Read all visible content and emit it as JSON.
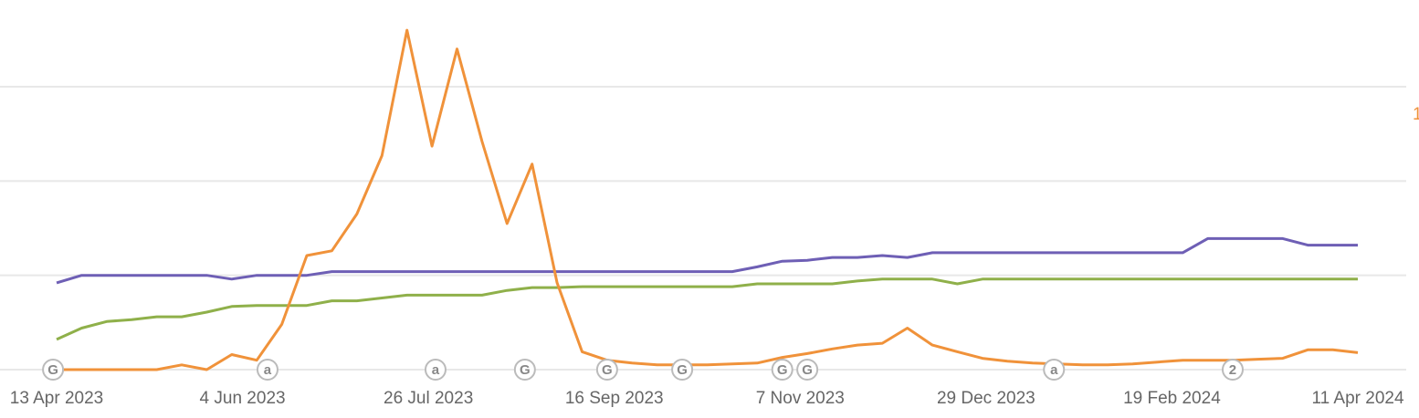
{
  "chart_data": {
    "type": "line",
    "x": [
      "2023-04-13",
      "2023-04-20",
      "2023-04-27",
      "2023-05-04",
      "2023-05-11",
      "2023-05-18",
      "2023-05-25",
      "2023-06-01",
      "2023-06-08",
      "2023-06-15",
      "2023-06-22",
      "2023-06-29",
      "2023-07-06",
      "2023-07-13",
      "2023-07-20",
      "2023-07-27",
      "2023-08-03",
      "2023-08-10",
      "2023-08-17",
      "2023-08-24",
      "2023-08-31",
      "2023-09-07",
      "2023-09-14",
      "2023-09-21",
      "2023-09-28",
      "2023-10-05",
      "2023-10-12",
      "2023-10-19",
      "2023-10-26",
      "2023-11-02",
      "2023-11-09",
      "2023-11-16",
      "2023-11-23",
      "2023-11-30",
      "2023-12-07",
      "2023-12-14",
      "2023-12-21",
      "2023-12-28",
      "2024-01-04",
      "2024-01-11",
      "2024-01-18",
      "2024-01-25",
      "2024-02-01",
      "2024-02-08",
      "2024-02-15",
      "2024-02-22",
      "2024-02-29",
      "2024-03-07",
      "2024-03-14",
      "2024-03-21",
      "2024-03-28",
      "2024-04-04",
      "2024-04-11"
    ],
    "series": [
      {
        "color": "#6e5fb5",
        "values": [
          0.92,
          1.0,
          1.0,
          1.0,
          1.0,
          1.0,
          1.0,
          0.96,
          1.0,
          1.0,
          1.0,
          1.04,
          1.04,
          1.04,
          1.04,
          1.04,
          1.04,
          1.04,
          1.04,
          1.04,
          1.04,
          1.04,
          1.04,
          1.04,
          1.04,
          1.04,
          1.04,
          1.04,
          1.09,
          1.15,
          1.16,
          1.19,
          1.19,
          1.21,
          1.19,
          1.24,
          1.24,
          1.24,
          1.24,
          1.24,
          1.24,
          1.24,
          1.24,
          1.24,
          1.24,
          1.24,
          1.39,
          1.39,
          1.39,
          1.39,
          1.32,
          1.32,
          1.32
        ]
      },
      {
        "color": "#8fb04a",
        "values": [
          0.32,
          0.44,
          0.51,
          0.53,
          0.56,
          0.56,
          0.61,
          0.67,
          0.68,
          0.68,
          0.68,
          0.73,
          0.73,
          0.76,
          0.79,
          0.79,
          0.79,
          0.79,
          0.84,
          0.87,
          0.87,
          0.88,
          0.88,
          0.88,
          0.88,
          0.88,
          0.88,
          0.88,
          0.91,
          0.91,
          0.91,
          0.91,
          0.94,
          0.96,
          0.96,
          0.96,
          0.91,
          0.96,
          0.96,
          0.96,
          0.96,
          0.96,
          0.96,
          0.96,
          0.96,
          0.96,
          0.96,
          0.96,
          0.96,
          0.96,
          0.96,
          0.96,
          0.96
        ]
      },
      {
        "color": "#f0923a",
        "values": [
          0,
          0,
          0,
          0,
          0,
          0.05,
          0,
          0.16,
          0.1,
          0.48,
          1.21,
          1.26,
          1.65,
          2.27,
          3.6,
          2.37,
          3.4,
          2.42,
          1.55,
          2.18,
          0.92,
          0.19,
          0.1,
          0.07,
          0.05,
          0.05,
          0.05,
          0.06,
          0.07,
          0.13,
          0.17,
          0.22,
          0.26,
          0.28,
          0.44,
          0.26,
          0.19,
          0.12,
          0.09,
          0.07,
          0.06,
          0.05,
          0.05,
          0.06,
          0.08,
          0.1,
          0.1,
          0.1,
          0.11,
          0.12,
          0.21,
          0.21,
          0.18
        ]
      }
    ],
    "xlim": [
      "2023-04-13",
      "2024-04-11"
    ],
    "xticks": [
      {
        "value": "2023-04-13",
        "label": "13 Apr 2023"
      },
      {
        "value": "2023-06-04",
        "label": "4 Jun 2023"
      },
      {
        "value": "2023-07-26",
        "label": "26 Jul 2023"
      },
      {
        "value": "2023-09-16",
        "label": "16 Sep 2023"
      },
      {
        "value": "2023-11-07",
        "label": "7 Nov 2023"
      },
      {
        "value": "2023-12-29",
        "label": "29 Dec 2023"
      },
      {
        "value": "2024-02-19",
        "label": "19 Feb 2024"
      },
      {
        "value": "2024-04-11",
        "label": "11 Apr 2024"
      }
    ],
    "ylim": [
      0,
      3.92
    ],
    "yticks": [
      0,
      1,
      2,
      3
    ],
    "grid": true,
    "annotations": [
      {
        "text": "1",
        "color": "#f0923a"
      }
    ],
    "events": [
      {
        "label": "G",
        "x": "2023-04-12"
      },
      {
        "label": "a",
        "x": "2023-06-11"
      },
      {
        "label": "a",
        "x": "2023-07-28"
      },
      {
        "label": "G",
        "x": "2023-08-22"
      },
      {
        "label": "G",
        "x": "2023-09-14"
      },
      {
        "label": "G",
        "x": "2023-10-05"
      },
      {
        "label": "G",
        "x": "2023-11-02"
      },
      {
        "label": "G",
        "x": "2023-11-09"
      },
      {
        "label": "a",
        "x": "2024-01-17"
      },
      {
        "label": "2",
        "x": "2024-03-07"
      }
    ]
  }
}
